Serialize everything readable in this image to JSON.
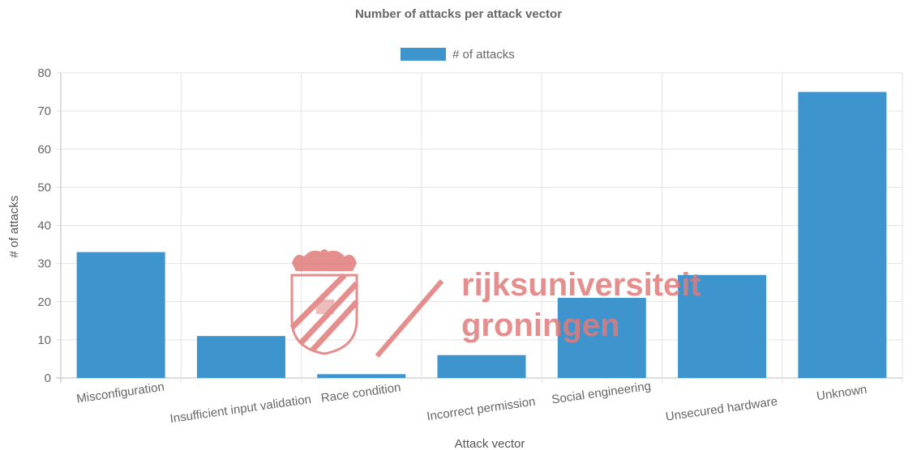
{
  "chart_data": {
    "type": "bar",
    "title": "Number of attacks per attack vector",
    "xlabel": "Attack vector",
    "ylabel": "# of attacks",
    "categories": [
      "Misconfiguration",
      "Insufficient input validation",
      "Race condition",
      "Incorrect permission",
      "Social engineering",
      "Unsecured hardware",
      "Unknown"
    ],
    "series": [
      {
        "name": "# of attacks",
        "values": [
          33,
          11,
          1,
          6,
          21,
          27,
          75
        ],
        "color": "#3e95cd"
      }
    ],
    "ylim": [
      0,
      80
    ],
    "yticks": [
      0,
      10,
      20,
      30,
      40,
      50,
      60,
      70,
      80
    ],
    "grid": true,
    "legend_position": "top"
  },
  "watermark": {
    "text_lines": [
      "rijksuniversiteit",
      "groningen"
    ],
    "color": "#e07b7b"
  }
}
